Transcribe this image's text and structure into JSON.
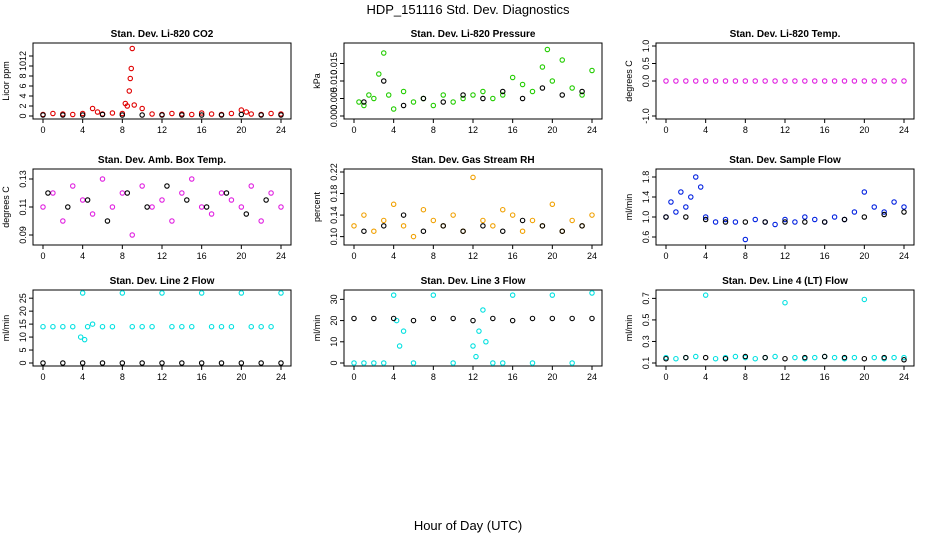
{
  "page": {
    "title": "HDP_151116  Std. Dev. Diagnostics",
    "xlabel": "Hour of Day (UTC)"
  },
  "chart_data": [
    {
      "type": "scatter",
      "title": "Stan. Dev. Li-820 CO2",
      "ylabel": "Licor ppm",
      "xlim": [
        0,
        24
      ],
      "ylim": [
        0,
        14
      ],
      "xticks": [
        "0",
        "4",
        "8",
        "12",
        "16",
        "20",
        "24"
      ],
      "yticks": [
        "0",
        "2",
        "4",
        "6",
        "8",
        "10",
        "12"
      ],
      "ytick_values": [
        0,
        2,
        4,
        6,
        8,
        10,
        12
      ],
      "color": "#e00000",
      "series": [
        {
          "x": [
            0,
            1,
            2,
            3,
            4,
            5,
            5.5,
            6,
            7,
            8,
            8.3,
            8.5,
            8.7,
            8.8,
            8.9,
            9,
            9.2,
            10,
            11,
            12,
            13,
            14,
            15,
            16,
            17,
            18,
            19,
            20,
            20.5,
            21,
            22,
            23,
            24
          ],
          "y": [
            0.3,
            0.5,
            0.4,
            0.3,
            0.5,
            1.5,
            0.8,
            0.4,
            0.6,
            0.5,
            2.5,
            2.0,
            5.0,
            7.5,
            9.5,
            13.5,
            2.2,
            1.5,
            0.4,
            0.3,
            0.5,
            0.4,
            0.3,
            0.6,
            0.4,
            0.3,
            0.5,
            1.2,
            0.8,
            0.4,
            0.3,
            0.5,
            0.4
          ]
        },
        {
          "x": [
            0,
            2,
            4,
            6,
            8,
            10,
            12,
            14,
            16,
            18,
            20,
            22,
            24
          ],
          "y": [
            0.2,
            0.2,
            0.2,
            0.3,
            0.2,
            0.2,
            0.2,
            0.2,
            0.2,
            0.2,
            0.3,
            0.2,
            0.2
          ],
          "color": "#000000"
        }
      ]
    },
    {
      "type": "scatter",
      "title": "Stan. Dev. Li-820 Pressure",
      "ylabel": "kPa",
      "xlim": [
        0,
        24
      ],
      "ylim": [
        0,
        0.02
      ],
      "xticks": [
        "0",
        "4",
        "8",
        "12",
        "16",
        "20",
        "24"
      ],
      "yticks": [
        "0.000",
        "0.005",
        "0.010",
        "0.015"
      ],
      "ytick_values": [
        0,
        0.005,
        0.01,
        0.015
      ],
      "color": "#22cc00",
      "series": [
        {
          "x": [
            0.5,
            1,
            1.5,
            2,
            2.5,
            3,
            3.5,
            4,
            5,
            6,
            7,
            8,
            9,
            10,
            11,
            12,
            13,
            14,
            15,
            16,
            17,
            18,
            19,
            19.5,
            20,
            21,
            22,
            23,
            24
          ],
          "y": [
            0.004,
            0.003,
            0.006,
            0.005,
            0.012,
            0.018,
            0.006,
            0.002,
            0.007,
            0.004,
            0.005,
            0.003,
            0.006,
            0.004,
            0.005,
            0.006,
            0.007,
            0.005,
            0.006,
            0.011,
            0.009,
            0.007,
            0.014,
            0.019,
            0.01,
            0.016,
            0.008,
            0.006,
            0.013
          ]
        },
        {
          "x": [
            1,
            3,
            5,
            7,
            9,
            11,
            13,
            15,
            17,
            19,
            21,
            23
          ],
          "y": [
            0.004,
            0.01,
            0.003,
            0.005,
            0.004,
            0.006,
            0.005,
            0.007,
            0.005,
            0.008,
            0.006,
            0.007
          ],
          "color": "#000000"
        }
      ]
    },
    {
      "type": "scatter",
      "title": "Stan. Dev. Li-820 Temp.",
      "ylabel": "degrees C",
      "xlim": [
        0,
        24
      ],
      "ylim": [
        -1,
        1
      ],
      "xticks": [
        "0",
        "4",
        "8",
        "12",
        "16",
        "20",
        "24"
      ],
      "yticks": [
        "-1.0",
        "0.0",
        "0.5",
        "1.0"
      ],
      "ytick_values": [
        -1,
        0,
        0.5,
        1
      ],
      "color": "#e020e0",
      "series": [
        {
          "x": [
            0,
            1,
            2,
            3,
            4,
            5,
            6,
            7,
            8,
            9,
            10,
            11,
            12,
            13,
            14,
            15,
            16,
            17,
            18,
            19,
            20,
            21,
            22,
            23,
            24
          ],
          "y": [
            0,
            0,
            0,
            0,
            0,
            0,
            0,
            0,
            0,
            0,
            0,
            0,
            0,
            0,
            0,
            0,
            0,
            0,
            0,
            0,
            0,
            0,
            0,
            0,
            0
          ]
        }
      ]
    },
    {
      "type": "scatter",
      "title": "Stan. Dev. Amb. Box Temp.",
      "ylabel": "degrees C",
      "xlim": [
        0,
        24
      ],
      "ylim": [
        0.085,
        0.135
      ],
      "xticks": [
        "0",
        "4",
        "8",
        "12",
        "16",
        "20",
        "24"
      ],
      "yticks": [
        "0.09",
        "0.11",
        "0.13"
      ],
      "ytick_values": [
        0.09,
        0.11,
        0.13
      ],
      "color": "#e020e0",
      "series": [
        {
          "x": [
            0,
            1,
            2,
            3,
            4,
            5,
            6,
            7,
            8,
            9,
            10,
            11,
            12,
            13,
            14,
            15,
            16,
            17,
            18,
            19,
            20,
            21,
            22,
            23,
            24
          ],
          "y": [
            0.11,
            0.12,
            0.1,
            0.125,
            0.115,
            0.105,
            0.13,
            0.11,
            0.12,
            0.09,
            0.125,
            0.11,
            0.115,
            0.1,
            0.12,
            0.13,
            0.11,
            0.105,
            0.12,
            0.115,
            0.11,
            0.125,
            0.1,
            0.12,
            0.11
          ]
        },
        {
          "x": [
            0.5,
            2.5,
            4.5,
            6.5,
            8.5,
            10.5,
            12.5,
            14.5,
            16.5,
            18.5,
            20.5,
            22.5
          ],
          "y": [
            0.12,
            0.11,
            0.115,
            0.1,
            0.12,
            0.11,
            0.125,
            0.115,
            0.11,
            0.12,
            0.105,
            0.115
          ],
          "color": "#000000"
        }
      ]
    },
    {
      "type": "scatter",
      "title": "Stan. Dev. Gas Stream RH",
      "ylabel": "percent",
      "xlim": [
        0,
        24
      ],
      "ylim": [
        0.09,
        0.22
      ],
      "xticks": [
        "0",
        "4",
        "8",
        "12",
        "16",
        "20",
        "24"
      ],
      "yticks": [
        "0.10",
        "0.14",
        "0.18",
        "0.22"
      ],
      "ytick_values": [
        0.1,
        0.14,
        0.18,
        0.22
      ],
      "color": "#f0a000",
      "series": [
        {
          "x": [
            0,
            1,
            2,
            3,
            4,
            5,
            6,
            7,
            8,
            9,
            10,
            11,
            12,
            13,
            14,
            15,
            16,
            17,
            18,
            19,
            20,
            21,
            22,
            23,
            24
          ],
          "y": [
            0.12,
            0.14,
            0.11,
            0.13,
            0.16,
            0.12,
            0.1,
            0.15,
            0.13,
            0.12,
            0.14,
            0.11,
            0.21,
            0.13,
            0.12,
            0.15,
            0.14,
            0.11,
            0.13,
            0.12,
            0.16,
            0.11,
            0.13,
            0.12,
            0.14
          ]
        },
        {
          "x": [
            1,
            3,
            5,
            7,
            9,
            11,
            13,
            15,
            17,
            19,
            21,
            23
          ],
          "y": [
            0.11,
            0.12,
            0.14,
            0.11,
            0.12,
            0.11,
            0.12,
            0.11,
            0.13,
            0.12,
            0.11,
            0.12
          ],
          "color": "#000000"
        }
      ]
    },
    {
      "type": "scatter",
      "title": "Stan. Dev. Sample Flow",
      "ylabel": "ml/min",
      "xlim": [
        0,
        24
      ],
      "ylim": [
        0.5,
        1.9
      ],
      "xticks": [
        "0",
        "4",
        "8",
        "12",
        "16",
        "20",
        "24"
      ],
      "yticks": [
        "0.6",
        "1.0",
        "1.4",
        "1.8"
      ],
      "ytick_values": [
        0.6,
        1.0,
        1.4,
        1.8
      ],
      "color": "#0020e0",
      "series": [
        {
          "x": [
            0,
            0.5,
            1,
            1.5,
            2,
            2.5,
            3,
            3.5,
            4,
            5,
            6,
            7,
            8,
            9,
            10,
            11,
            12,
            13,
            14,
            15,
            16,
            17,
            18,
            19,
            20,
            21,
            22,
            23,
            24
          ],
          "y": [
            1.0,
            1.3,
            1.1,
            1.5,
            1.2,
            1.4,
            1.8,
            1.6,
            1.0,
            0.9,
            0.95,
            0.9,
            0.55,
            0.95,
            0.9,
            0.85,
            0.95,
            0.9,
            1.0,
            0.95,
            0.9,
            1.0,
            0.95,
            1.1,
            1.5,
            1.2,
            1.1,
            1.3,
            1.2
          ]
        },
        {
          "x": [
            0,
            2,
            4,
            6,
            8,
            10,
            12,
            14,
            16,
            18,
            20,
            22,
            24
          ],
          "y": [
            1.0,
            1.0,
            0.95,
            0.9,
            0.9,
            0.9,
            0.9,
            0.9,
            0.9,
            0.95,
            1.0,
            1.05,
            1.1
          ],
          "color": "#000000"
        }
      ]
    },
    {
      "type": "scatter",
      "title": "Stan. Dev. Line 2 Flow",
      "ylabel": "ml/min",
      "xlim": [
        0,
        24
      ],
      "ylim": [
        0,
        27
      ],
      "xticks": [
        "0",
        "4",
        "8",
        "12",
        "16",
        "20",
        "24"
      ],
      "yticks": [
        "0",
        "5",
        "10",
        "15",
        "20",
        "25"
      ],
      "ytick_values": [
        0,
        5,
        10,
        15,
        20,
        25
      ],
      "color": "#00e0e0",
      "series": [
        {
          "x": [
            0,
            1,
            2,
            3,
            3.8,
            4,
            4.2,
            4.5,
            5,
            6,
            7,
            8,
            9,
            10,
            11,
            12,
            13,
            14,
            15,
            16,
            17,
            18,
            19,
            20,
            21,
            22,
            23,
            24
          ],
          "y": [
            14,
            14,
            14,
            14,
            10,
            27,
            9,
            14,
            15,
            14,
            14,
            27,
            14,
            14,
            14,
            27,
            14,
            14,
            14,
            27,
            14,
            14,
            14,
            27,
            14,
            14,
            14,
            27
          ]
        },
        {
          "x": [
            0,
            2,
            4,
            6,
            8,
            10,
            12,
            14,
            16,
            18,
            20,
            22,
            24
          ],
          "y": [
            0,
            0,
            0,
            0,
            0,
            0,
            0,
            0,
            0,
            0,
            0,
            0,
            0
          ],
          "color": "#000000"
        }
      ]
    },
    {
      "type": "scatter",
      "title": "Stan. Dev. Line 3 Flow",
      "ylabel": "ml/min",
      "xlim": [
        0,
        24
      ],
      "ylim": [
        0,
        33
      ],
      "xticks": [
        "0",
        "4",
        "8",
        "12",
        "16",
        "20",
        "24"
      ],
      "yticks": [
        "0",
        "10",
        "20",
        "30"
      ],
      "ytick_values": [
        0,
        10,
        20,
        30
      ],
      "color": "#00e0e0",
      "series": [
        {
          "x": [
            0,
            1,
            2,
            3,
            4,
            4.3,
            4.6,
            5,
            6,
            8,
            10,
            12,
            12.3,
            12.6,
            13,
            13.3,
            14,
            15,
            16,
            18,
            20,
            22,
            24
          ],
          "y": [
            0,
            0,
            0,
            0,
            32,
            20,
            8,
            15,
            0,
            32,
            0,
            8,
            3,
            15,
            25,
            10,
            0,
            0,
            32,
            0,
            32,
            0,
            33
          ]
        },
        {
          "x": [
            0,
            2,
            4,
            6,
            8,
            10,
            12,
            14,
            16,
            18,
            20,
            22,
            24
          ],
          "y": [
            21,
            21,
            21,
            20,
            21,
            21,
            20,
            21,
            20,
            21,
            21,
            21,
            21
          ],
          "color": "#000000"
        }
      ]
    },
    {
      "type": "scatter",
      "title": "Stan. Dev. Line 4 (LT) Flow",
      "ylabel": "ml/min",
      "xlim": [
        0,
        24
      ],
      "ylim": [
        0.1,
        0.75
      ],
      "xticks": [
        "0",
        "4",
        "8",
        "12",
        "16",
        "20",
        "24"
      ],
      "yticks": [
        "0.1",
        "0.3",
        "0.5",
        "0.7"
      ],
      "ytick_values": [
        0.1,
        0.3,
        0.5,
        0.7
      ],
      "color": "#00e0e0",
      "series": [
        {
          "x": [
            0,
            1,
            2,
            3,
            4,
            5,
            6,
            7,
            8,
            9,
            10,
            11,
            12,
            13,
            14,
            15,
            16,
            17,
            18,
            19,
            20,
            21,
            22,
            23,
            24
          ],
          "y": [
            0.15,
            0.14,
            0.15,
            0.16,
            0.73,
            0.14,
            0.15,
            0.16,
            0.15,
            0.14,
            0.15,
            0.16,
            0.66,
            0.15,
            0.14,
            0.15,
            0.16,
            0.15,
            0.14,
            0.15,
            0.69,
            0.15,
            0.14,
            0.15,
            0.15
          ]
        },
        {
          "x": [
            0,
            2,
            4,
            6,
            8,
            10,
            12,
            14,
            16,
            18,
            20,
            22,
            24
          ],
          "y": [
            0.14,
            0.15,
            0.15,
            0.14,
            0.16,
            0.15,
            0.14,
            0.15,
            0.16,
            0.15,
            0.14,
            0.15,
            0.13
          ],
          "color": "#000000"
        }
      ]
    }
  ]
}
